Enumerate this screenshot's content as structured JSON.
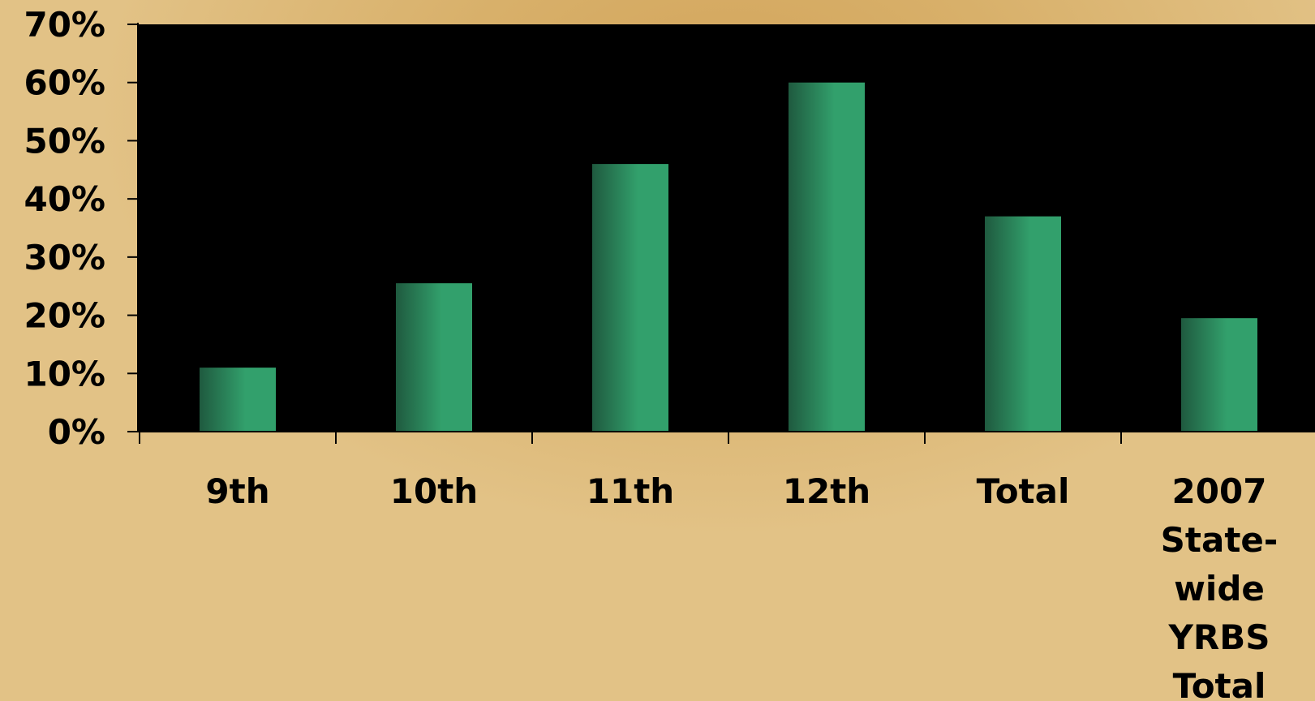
{
  "colors": {
    "plot_background": "#000000",
    "bar_dark": "#1f5a3f",
    "bar_light": "#32a06c",
    "axis": "#000000",
    "text": "#000000"
  },
  "chart_data": {
    "type": "bar",
    "categories": [
      "9th",
      "10th",
      "11th",
      "12th",
      "Total",
      "2007 State-wide YRBS Total"
    ],
    "category_lines": [
      [
        "9th"
      ],
      [
        "10th"
      ],
      [
        "11th"
      ],
      [
        "12th"
      ],
      [
        "Total"
      ],
      [
        "2007",
        "State-",
        "wide",
        "YRBS",
        "Total"
      ]
    ],
    "values": [
      11,
      25.5,
      46,
      60,
      37,
      19.5
    ],
    "yticks": [
      "0%",
      "10%",
      "20%",
      "30%",
      "40%",
      "50%",
      "60%",
      "70%"
    ],
    "ylim": [
      0,
      70
    ],
    "title": "",
    "xlabel": "",
    "ylabel": "",
    "grid": false,
    "legend": "none"
  }
}
